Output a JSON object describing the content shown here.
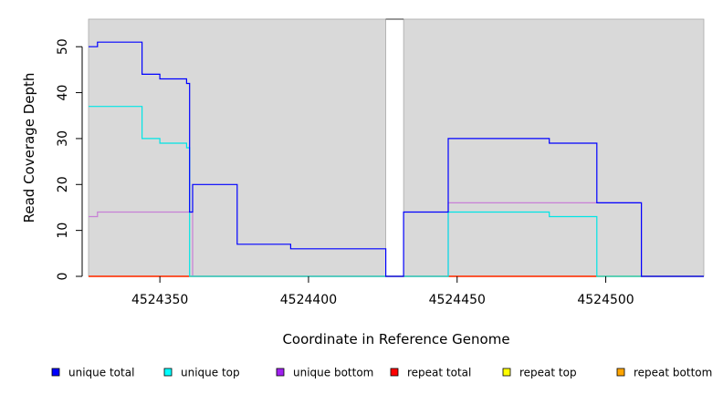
{
  "chart_data": {
    "type": "line",
    "step": true,
    "xlabel": "Coordinate in Reference Genome",
    "ylabel": "Read Coverage Depth",
    "xlim": [
      4524326,
      4524533
    ],
    "ylim": [
      0,
      56
    ],
    "xticks": [
      4524350,
      4524400,
      4524450,
      4524500
    ],
    "yticks": [
      0,
      10,
      20,
      30,
      40,
      50
    ],
    "grid": false,
    "background": "#d9d9d9",
    "gap_region": [
      4524426,
      4524432
    ],
    "legend_position": "bottom",
    "series": [
      {
        "name": "unique total",
        "color": "#0000ff",
        "points": [
          [
            4524326,
            50
          ],
          [
            4524329,
            50
          ],
          [
            4524329,
            51
          ],
          [
            4524344,
            51
          ],
          [
            4524344,
            44
          ],
          [
            4524350,
            44
          ],
          [
            4524350,
            43
          ],
          [
            4524359,
            43
          ],
          [
            4524359,
            42
          ],
          [
            4524360,
            42
          ],
          [
            4524360,
            14
          ],
          [
            4524361,
            14
          ],
          [
            4524361,
            20
          ],
          [
            4524376,
            20
          ],
          [
            4524376,
            7
          ],
          [
            4524394,
            7
          ],
          [
            4524394,
            6
          ],
          [
            4524426,
            6
          ],
          [
            4524426,
            0
          ],
          [
            4524432,
            0
          ],
          [
            4524432,
            14
          ],
          [
            4524447,
            14
          ],
          [
            4524447,
            30
          ],
          [
            4524481,
            30
          ],
          [
            4524481,
            29
          ],
          [
            4524497,
            29
          ],
          [
            4524497,
            16
          ],
          [
            4524512,
            16
          ],
          [
            4524512,
            0
          ],
          [
            4524533,
            0
          ]
        ]
      },
      {
        "name": "unique top",
        "color": "#00e5e5",
        "points": [
          [
            4524326,
            37
          ],
          [
            4524344,
            37
          ],
          [
            4524344,
            30
          ],
          [
            4524350,
            30
          ],
          [
            4524350,
            29
          ],
          [
            4524359,
            29
          ],
          [
            4524359,
            28
          ],
          [
            4524360,
            28
          ],
          [
            4524360,
            0
          ],
          [
            4524426,
            0
          ],
          [
            4524432,
            0
          ],
          [
            4524447,
            0
          ],
          [
            4524447,
            14
          ],
          [
            4524481,
            14
          ],
          [
            4524481,
            13
          ],
          [
            4524497,
            13
          ],
          [
            4524497,
            0
          ],
          [
            4524533,
            0
          ]
        ]
      },
      {
        "name": "unique bottom",
        "color": "#c77fd6",
        "points": [
          [
            4524326,
            13
          ],
          [
            4524329,
            13
          ],
          [
            4524329,
            14
          ],
          [
            4524361,
            14
          ],
          [
            4524361,
            0
          ],
          [
            4524426,
            0
          ],
          [
            4524432,
            0
          ],
          [
            4524447,
            0
          ],
          [
            4524447,
            16
          ],
          [
            4524512,
            16
          ],
          [
            4524512,
            0
          ],
          [
            4524533,
            0
          ]
        ]
      },
      {
        "name": "repeat total",
        "color": "#ff0000",
        "points": [
          [
            4524326,
            0
          ],
          [
            4524426,
            0
          ],
          [
            4524432,
            0
          ],
          [
            4524533,
            0
          ]
        ]
      },
      {
        "name": "repeat top",
        "color": "#ffff00",
        "points": [
          [
            4524326,
            0
          ],
          [
            4524426,
            0
          ],
          [
            4524432,
            0
          ],
          [
            4524533,
            0
          ]
        ]
      },
      {
        "name": "repeat bottom",
        "color": "#ffa500",
        "points": [
          [
            4524326,
            0
          ],
          [
            4524426,
            0
          ],
          [
            4524432,
            0
          ],
          [
            4524533,
            0
          ]
        ]
      }
    ],
    "legend": [
      {
        "label": "unique total",
        "color": "#0000ff"
      },
      {
        "label": "unique top",
        "color": "#00ffff"
      },
      {
        "label": "unique bottom",
        "color": "#a020f0"
      },
      {
        "label": "repeat total",
        "color": "#ff0000"
      },
      {
        "label": "repeat top",
        "color": "#ffff00"
      },
      {
        "label": "repeat bottom",
        "color": "#ffa500"
      }
    ]
  }
}
